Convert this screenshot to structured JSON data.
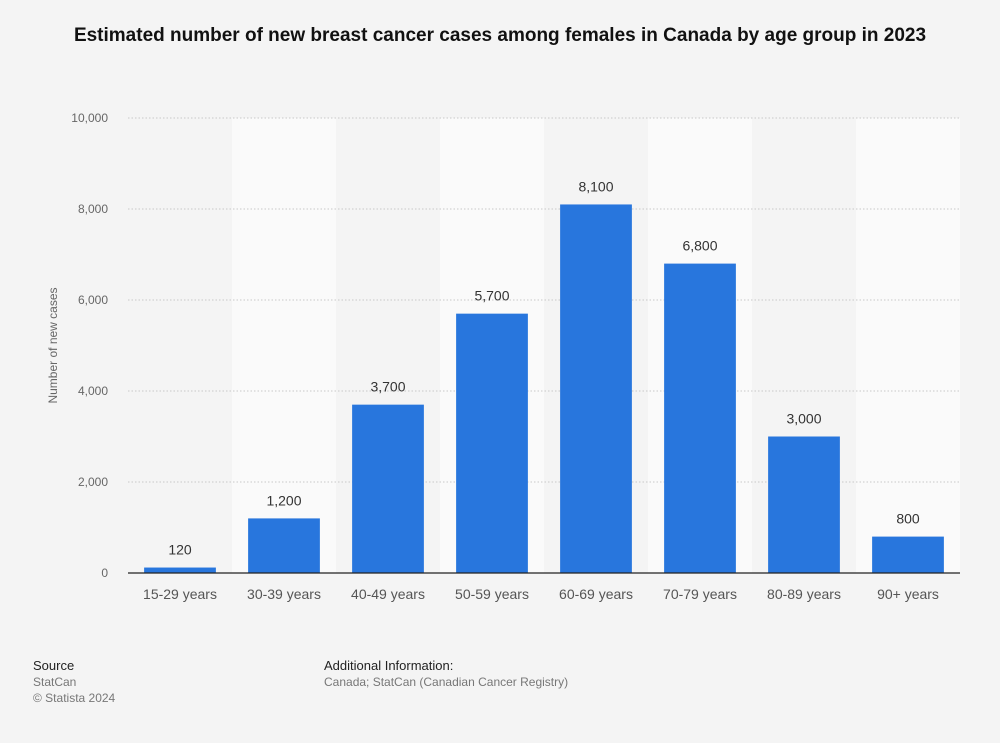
{
  "chart_data": {
    "type": "bar",
    "title": "Estimated number of new breast cancer cases among females in Canada by age group in 2023",
    "xlabel": "",
    "ylabel": "Number of new cases",
    "categories": [
      "15-29 years",
      "30-39 years",
      "40-49 years",
      "50-59 years",
      "60-69 years",
      "70-79 years",
      "80-89 years",
      "90+ years"
    ],
    "values": [
      120,
      1200,
      3700,
      5700,
      8100,
      6800,
      3000,
      800
    ],
    "value_labels": [
      "120",
      "1,200",
      "3,700",
      "5,700",
      "8,100",
      "6,800",
      "3,000",
      "800"
    ],
    "ylim": [
      0,
      10000
    ],
    "yticks": [
      0,
      2000,
      4000,
      6000,
      8000,
      10000
    ],
    "ytick_labels": [
      "0",
      "2,000",
      "4,000",
      "6,000",
      "8,000",
      "10,000"
    ],
    "grid": true,
    "bar_color": "#2876dd"
  },
  "footer": {
    "source_heading": "Source",
    "source_name": "StatCan",
    "copyright": "© Statista 2024",
    "info_heading": "Additional Information:",
    "info_text": "Canada; StatCan (Canadian Cancer Registry)"
  }
}
